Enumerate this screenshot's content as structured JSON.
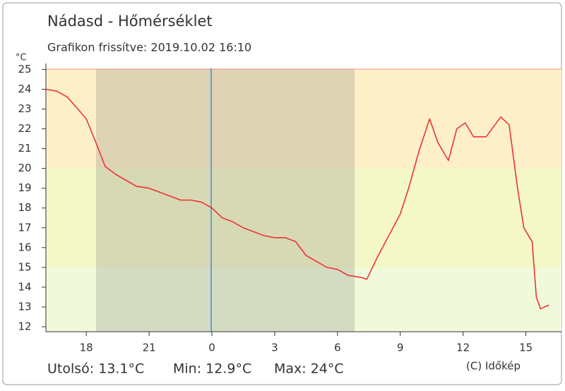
{
  "chart_data": {
    "type": "line",
    "title": "Nádasd - Hőmérséklet",
    "subtitle": "Grafikon frissítve: 2019.10.02 16:10",
    "y_unit": "°C",
    "footer": {
      "last": "Utolsó: 13.1°C",
      "min": "Min: 12.9°C",
      "max": "Max: 24°C",
      "credit": "(C) Időkép"
    },
    "x": [
      16.07,
      16.6,
      17.1,
      17.6,
      18.0,
      18.5,
      18.9,
      19.4,
      19.9,
      20.4,
      21.0,
      21.5,
      22.0,
      22.5,
      23.0,
      23.5,
      24.0,
      24.5,
      25.0,
      25.5,
      26.0,
      26.5,
      27.0,
      27.5,
      28.0,
      28.5,
      29.0,
      29.5,
      30.0,
      30.5,
      31.1,
      31.4,
      31.9,
      32.4,
      33.0,
      33.4,
      33.9,
      34.4,
      34.8,
      35.3,
      35.7,
      36.1,
      36.5,
      37.1,
      37.8,
      38.2,
      38.6,
      38.9,
      39.3,
      39.5,
      39.7,
      40.1
    ],
    "series": [
      {
        "name": "Hőmérséklet",
        "color": "#ee3333",
        "values": [
          24.0,
          23.9,
          23.6,
          23.0,
          22.5,
          21.2,
          20.1,
          19.7,
          19.4,
          19.1,
          19.0,
          18.8,
          18.6,
          18.4,
          18.4,
          18.3,
          18.0,
          17.5,
          17.3,
          17.0,
          16.8,
          16.6,
          16.5,
          16.5,
          16.3,
          15.6,
          15.3,
          15.0,
          14.9,
          14.6,
          14.5,
          14.4,
          15.5,
          16.5,
          17.7,
          19.0,
          20.9,
          22.5,
          21.3,
          20.4,
          22.0,
          22.3,
          21.6,
          21.6,
          22.6,
          22.2,
          19.0,
          17.0,
          16.3,
          13.5,
          12.9,
          13.1
        ]
      }
    ],
    "xlim": [
      16.07,
      40.7
    ],
    "xticks": [
      18,
      21,
      {
        "value": 24,
        "label": "0"
      },
      {
        "value": 27,
        "label": "3"
      },
      {
        "value": 30,
        "label": "6"
      },
      {
        "value": 33,
        "label": "9"
      },
      {
        "value": 36,
        "label": "12"
      },
      {
        "value": 39,
        "label": "15"
      }
    ],
    "ylim": [
      11.75,
      25.05
    ],
    "yticks": [
      12,
      13,
      14,
      15,
      16,
      17,
      18,
      19,
      20,
      21,
      22,
      23,
      24,
      25
    ]
  }
}
